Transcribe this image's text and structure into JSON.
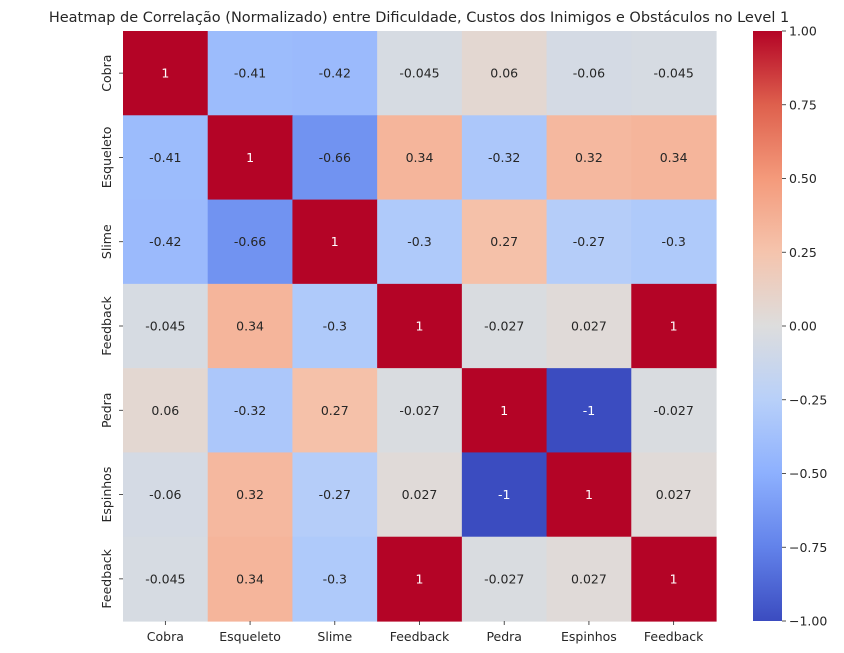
{
  "chart_data": {
    "type": "heatmap",
    "title": "Heatmap de Correlação (Normalizado) entre Dificuldade, Custos dos Inimigos e Obstáculos no Level 1",
    "xlabel": "",
    "ylabel": "",
    "x_categories": [
      "Cobra",
      "Esqueleto",
      "Slime",
      "Feedback",
      "Pedra",
      "Espinhos",
      "Feedback"
    ],
    "y_categories": [
      "Cobra",
      "Esqueleto",
      "Slime",
      "Feedback",
      "Pedra",
      "Espinhos",
      "Feedback"
    ],
    "values": [
      [
        1,
        -0.41,
        -0.42,
        -0.045,
        0.06,
        -0.06,
        -0.045
      ],
      [
        -0.41,
        1,
        -0.66,
        0.34,
        -0.32,
        0.32,
        0.34
      ],
      [
        -0.42,
        -0.66,
        1,
        -0.3,
        0.27,
        -0.27,
        -0.3
      ],
      [
        -0.045,
        0.34,
        -0.3,
        1,
        -0.027,
        0.027,
        1
      ],
      [
        0.06,
        -0.32,
        0.27,
        -0.027,
        1,
        -1,
        -0.027
      ],
      [
        -0.06,
        0.32,
        -0.27,
        0.027,
        -1,
        1,
        0.027
      ],
      [
        -0.045,
        0.34,
        -0.3,
        1,
        -0.027,
        0.027,
        1
      ]
    ],
    "colormap": "coolwarm",
    "vmin": -1,
    "vmax": 1,
    "colorbar_ticks": [
      "1.00",
      "0.75",
      "0.50",
      "0.25",
      "0.00",
      "−0.25",
      "−0.50",
      "−0.75",
      "−1.00"
    ],
    "colorbar_tick_values": [
      1,
      0.75,
      0.5,
      0.25,
      0,
      -0.25,
      -0.5,
      -0.75,
      -1
    ],
    "grid": false,
    "legend": "colorbar-right"
  }
}
